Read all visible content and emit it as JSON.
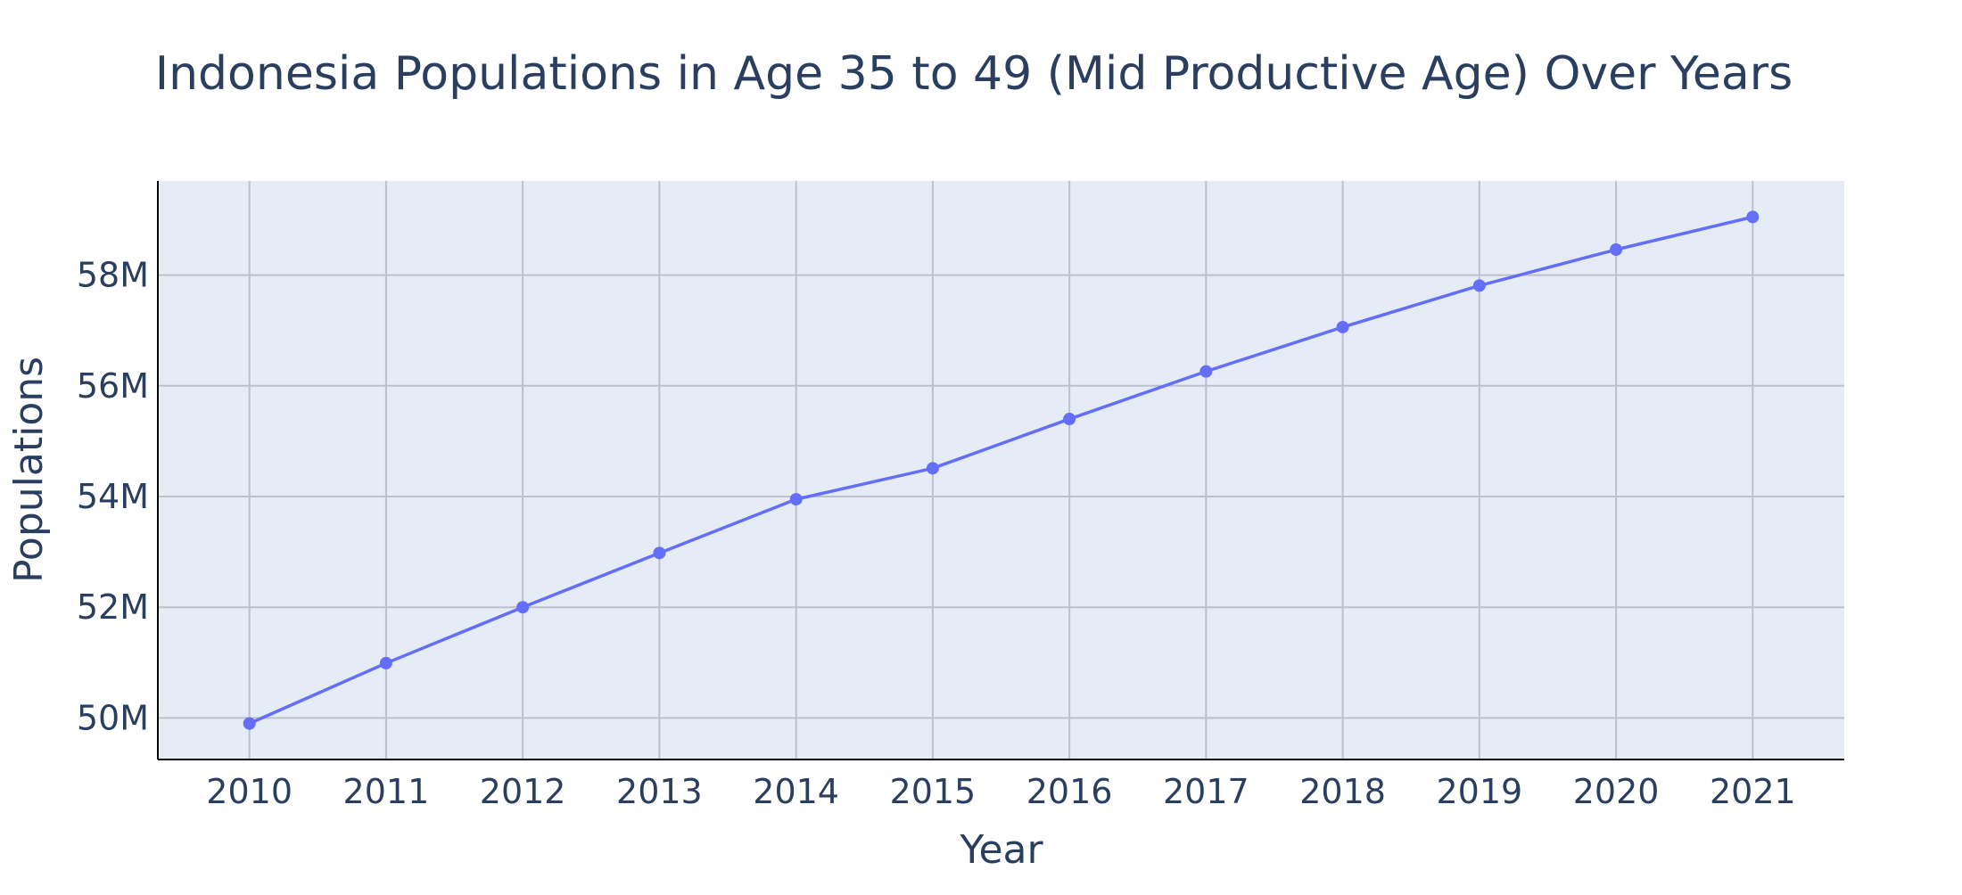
{
  "chart_data": {
    "type": "line",
    "title": "Indonesia Populations in Age 35 to 49 (Mid Productive Age) Over Years",
    "xlabel": "Year",
    "ylabel": "Populations",
    "x": [
      2010,
      2011,
      2012,
      2013,
      2014,
      2015,
      2016,
      2017,
      2018,
      2019,
      2020,
      2021
    ],
    "series": [
      {
        "values": [
          49900000,
          50990000,
          52000000,
          52980000,
          53950000,
          54510000,
          55400000,
          56260000,
          57060000,
          57810000,
          58460000,
          59050000
        ],
        "color": "#636efa"
      }
    ],
    "xlim": [
      2009.33,
      2021.67
    ],
    "ylim": [
      49250000,
      59700000
    ],
    "y_ticks": [
      50000000,
      52000000,
      54000000,
      56000000,
      58000000
    ],
    "y_tick_labels": [
      "50M",
      "52M",
      "54M",
      "56M",
      "58M"
    ],
    "x_tick_labels": [
      "2010",
      "2011",
      "2012",
      "2013",
      "2014",
      "2015",
      "2016",
      "2017",
      "2018",
      "2019",
      "2020",
      "2021"
    ],
    "grid": true,
    "legend": false,
    "plot_background": "#e5ecf6",
    "grid_color": "#bcc0cb",
    "text_color": "#2a3f5f"
  }
}
